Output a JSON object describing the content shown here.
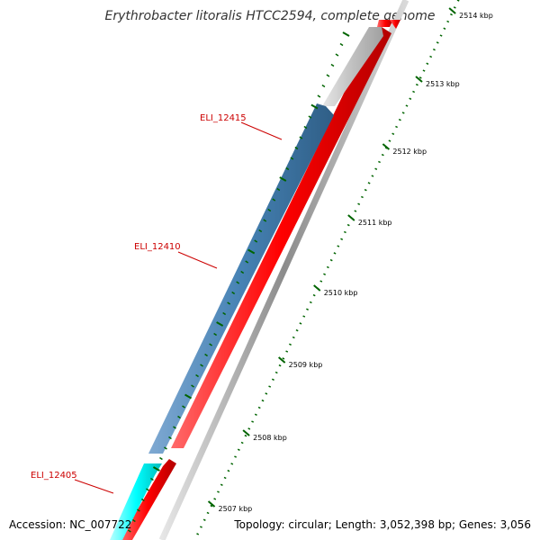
{
  "title": "Erythrobacter litoralis HTCC2594, complete genome",
  "footer": {
    "accession": "Accession: NC_007722",
    "topology": "Topology: circular; Length: 3,052,398 bp; Genes: 3,056"
  },
  "colors": {
    "forward_feature": "#ff0000",
    "reverse_highlight": "#4682b4",
    "reverse_other": "#00ffff",
    "unselected": "#c0c0c0",
    "ruler_ticks": "#006400",
    "gene_label": "#cc0000"
  },
  "ruler": {
    "unit": "kbp",
    "ticks": [
      {
        "label": "2514 kbp"
      },
      {
        "label": "2513 kbp"
      },
      {
        "label": "2512 kbp"
      },
      {
        "label": "2511 kbp"
      },
      {
        "label": "2510 kbp"
      },
      {
        "label": "2509 kbp"
      },
      {
        "label": "2508 kbp"
      },
      {
        "label": "2507 kbp"
      }
    ]
  },
  "gene_labels": [
    {
      "name": "ELI_12415"
    },
    {
      "name": "ELI_12410"
    },
    {
      "name": "ELI_12405"
    }
  ]
}
